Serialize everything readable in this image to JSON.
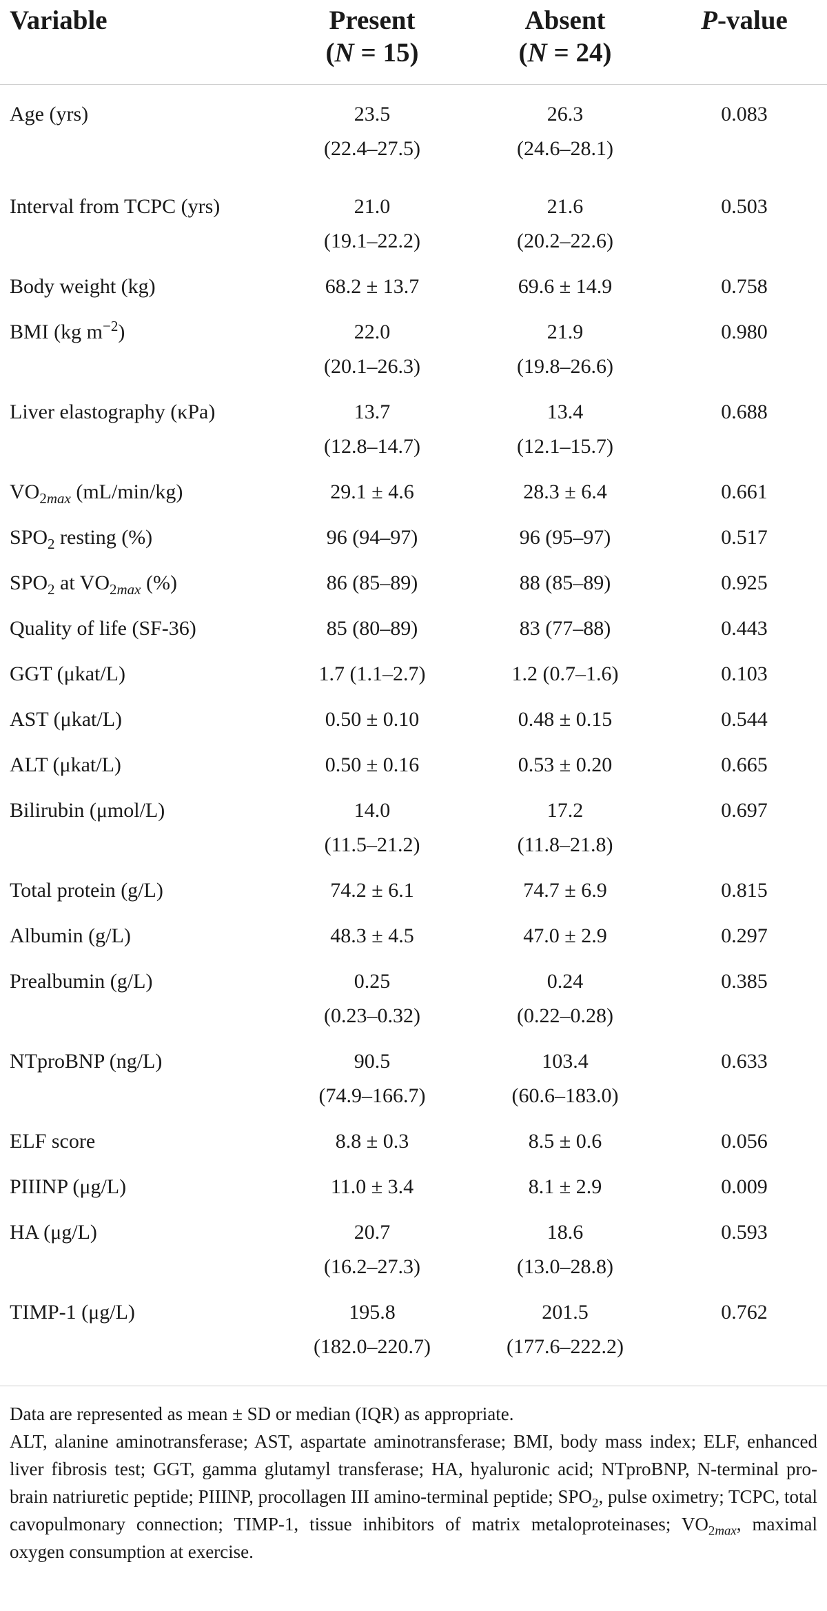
{
  "header": {
    "variable": "Variable",
    "present_line1": "Present",
    "present_line2": "(N = 15)",
    "absent_line1": "Absent",
    "absent_line2": "(N = 24)",
    "pvalue": "P-value"
  },
  "rows": [
    {
      "label": "Age (yrs)",
      "present": [
        "23.5",
        "(22.4–27.5)"
      ],
      "absent": [
        "26.3",
        "(24.6–28.1)"
      ],
      "p": "0.083"
    },
    {
      "label": "Interval from TCPC (yrs)",
      "present": [
        "21.0",
        "(19.1–22.2)"
      ],
      "absent": [
        "21.6",
        "(20.2–22.6)"
      ],
      "p": "0.503"
    },
    {
      "label": "Body weight (kg)",
      "present": [
        "68.2 ± 13.7"
      ],
      "absent": [
        "69.6 ± 14.9"
      ],
      "p": "0.758"
    },
    {
      "label": "BMI (kg m−2)",
      "present": [
        "22.0",
        "(20.1–26.3)"
      ],
      "absent": [
        "21.9",
        "(19.8–26.6)"
      ],
      "p": "0.980"
    },
    {
      "label": "Liver elastography (κPa)",
      "present": [
        "13.7",
        "(12.8–14.7)"
      ],
      "absent": [
        "13.4",
        "(12.1–15.7)"
      ],
      "p": "0.688"
    },
    {
      "label": "VO2max (mL/min/kg)",
      "present": [
        "29.1 ± 4.6"
      ],
      "absent": [
        "28.3 ± 6.4"
      ],
      "p": "0.661"
    },
    {
      "label": "SPO2 resting (%)",
      "present": [
        "96 (94–97)"
      ],
      "absent": [
        "96 (95–97)"
      ],
      "p": "0.517"
    },
    {
      "label": "SPO2 at VO2max (%)",
      "present": [
        "86 (85–89)"
      ],
      "absent": [
        "88 (85–89)"
      ],
      "p": "0.925"
    },
    {
      "label": "Quality of life (SF-36)",
      "present": [
        "85 (80–89)"
      ],
      "absent": [
        "83 (77–88)"
      ],
      "p": "0.443"
    },
    {
      "label": "GGT (μkat/L)",
      "present": [
        "1.7 (1.1–2.7)"
      ],
      "absent": [
        "1.2 (0.7–1.6)"
      ],
      "p": "0.103"
    },
    {
      "label": "AST (μkat/L)",
      "present": [
        "0.50 ± 0.10"
      ],
      "absent": [
        "0.48 ± 0.15"
      ],
      "p": "0.544"
    },
    {
      "label": "ALT (μkat/L)",
      "present": [
        "0.50 ± 0.16"
      ],
      "absent": [
        "0.53 ± 0.20"
      ],
      "p": "0.665"
    },
    {
      "label": "Bilirubin (μmol/L)",
      "present": [
        "14.0",
        "(11.5–21.2)"
      ],
      "absent": [
        "17.2",
        "(11.8–21.8)"
      ],
      "p": "0.697"
    },
    {
      "label": "Total protein (g/L)",
      "present": [
        "74.2 ± 6.1"
      ],
      "absent": [
        "74.7 ± 6.9"
      ],
      "p": "0.815"
    },
    {
      "label": "Albumin (g/L)",
      "present": [
        "48.3 ± 4.5"
      ],
      "absent": [
        "47.0 ± 2.9"
      ],
      "p": "0.297"
    },
    {
      "label": "Prealbumin (g/L)",
      "present": [
        "0.25",
        "(0.23–0.32)"
      ],
      "absent": [
        "0.24",
        "(0.22–0.28)"
      ],
      "p": "0.385"
    },
    {
      "label": "NTproBNP (ng/L)",
      "present": [
        "90.5",
        "(74.9–166.7)"
      ],
      "absent": [
        "103.4",
        "(60.6–183.0)"
      ],
      "p": "0.633"
    },
    {
      "label": "ELF score",
      "present": [
        "8.8 ± 0.3"
      ],
      "absent": [
        "8.5 ± 0.6"
      ],
      "p": "0.056"
    },
    {
      "label": "PIIINP (μg/L)",
      "present": [
        "11.0 ± 3.4"
      ],
      "absent": [
        "8.1 ± 2.9"
      ],
      "p": "0.009"
    },
    {
      "label": "HA (μg/L)",
      "present": [
        "20.7",
        "(16.2–27.3)"
      ],
      "absent": [
        "18.6",
        "(13.0–28.8)"
      ],
      "p": "0.593"
    },
    {
      "label": "TIMP-1 (μg/L)",
      "present": [
        "195.8",
        "(182.0–220.7)"
      ],
      "absent": [
        "201.5",
        "(177.6–222.2)"
      ],
      "p": "0.762"
    }
  ],
  "notes": {
    "line1": "Data are represented as mean ± SD or median (IQR) as appropriate.",
    "abbreviations": "ALT, alanine aminotransferase; AST, aspartate aminotransferase; BMI, body mass index; ELF, enhanced liver fibrosis test; GGT, gamma glutamyl transferase; HA, hyaluronic acid; NTproBNP, N-terminal pro-brain natriuretic peptide; PIIINP, procollagen III amino-terminal peptide; SPO2, pulse oximetry; TCPC, total cavopulmonary connection; TIMP-1, tissue inhibitors of matrix metaloproteinases; VO2max, maximal oxygen consumption at exercise."
  }
}
